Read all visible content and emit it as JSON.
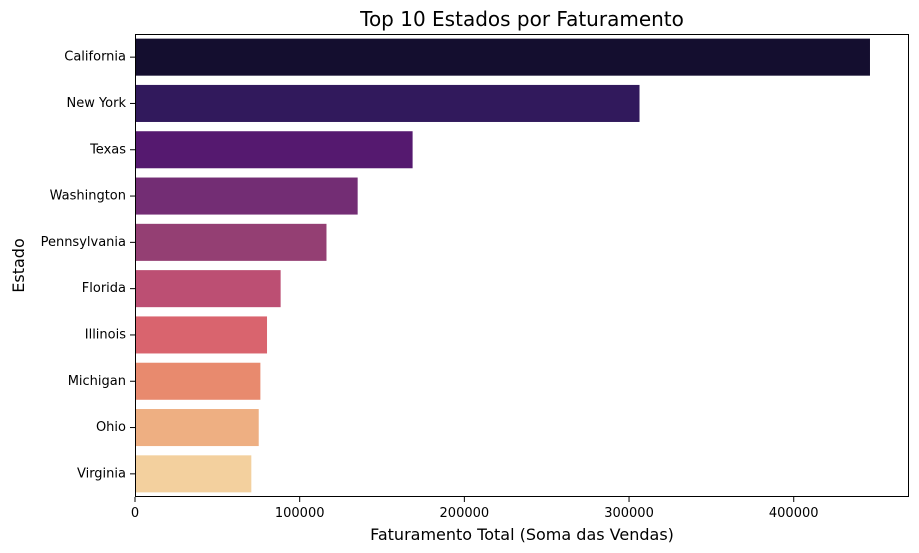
{
  "chart_data": {
    "type": "bar",
    "orientation": "horizontal",
    "title": "Top 10 Estados por Faturamento",
    "xlabel": "Faturamento Total (Soma das Vendas)",
    "ylabel": "Estado",
    "categories": [
      "California",
      "New York",
      "Texas",
      "Washington",
      "Pennsylvania",
      "Florida",
      "Illinois",
      "Michigan",
      "Ohio",
      "Virginia"
    ],
    "values": [
      446306,
      306362,
      168572,
      135206,
      116276,
      88436,
      80166,
      76136,
      75130,
      70637
    ],
    "colors": [
      "#140E2F",
      "#31195C",
      "#55196F",
      "#732D74",
      "#943F73",
      "#BC4F73",
      "#D9646E",
      "#E88A6E",
      "#EEAF82",
      "#F3D09E"
    ],
    "xlim": [
      0,
      470000
    ],
    "xticks": [
      0,
      100000,
      200000,
      300000,
      400000
    ],
    "xtick_labels": [
      "0",
      "100000",
      "200000",
      "300000",
      "400000"
    ],
    "grid": false,
    "legend": "none"
  }
}
